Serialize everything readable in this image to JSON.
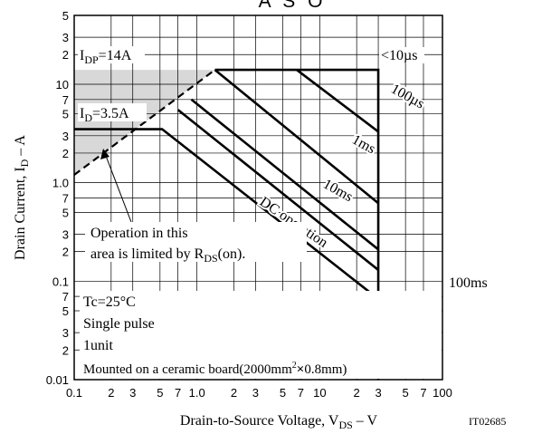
{
  "chart_data": {
    "type": "line",
    "title": "A S O",
    "xlabel_prefix": "Drain-to-Source Voltage, V",
    "xlabel_sub": "DS",
    "xlabel_suffix": " – V",
    "ylabel_prefix": "Drain Current, I",
    "ylabel_sub": "D",
    "ylabel_suffix": " – A",
    "xscale": "log",
    "yscale": "log",
    "xlim": [
      0.1,
      100
    ],
    "ylim": [
      0.01,
      50
    ],
    "grid": true,
    "x_tick_labels": [
      {
        "v": 0.1,
        "t": "0.1"
      },
      {
        "v": 0.2,
        "t": "2"
      },
      {
        "v": 0.3,
        "t": "3"
      },
      {
        "v": 0.5,
        "t": "5"
      },
      {
        "v": 0.7,
        "t": "7"
      },
      {
        "v": 1,
        "t": "1.0"
      },
      {
        "v": 2,
        "t": "2"
      },
      {
        "v": 3,
        "t": "3"
      },
      {
        "v": 5,
        "t": "5"
      },
      {
        "v": 7,
        "t": "7"
      },
      {
        "v": 10,
        "t": "10"
      },
      {
        "v": 20,
        "t": "2"
      },
      {
        "v": 30,
        "t": "3"
      },
      {
        "v": 50,
        "t": "5"
      },
      {
        "v": 70,
        "t": "7"
      },
      {
        "v": 100,
        "t": "100"
      }
    ],
    "y_tick_labels": [
      {
        "v": 0.01,
        "t": "0.01"
      },
      {
        "v": 0.02,
        "t": "2"
      },
      {
        "v": 0.03,
        "t": "3"
      },
      {
        "v": 0.05,
        "t": "5"
      },
      {
        "v": 0.07,
        "t": "7"
      },
      {
        "v": 0.1,
        "t": "0.1"
      },
      {
        "v": 0.2,
        "t": "2"
      },
      {
        "v": 0.3,
        "t": "3"
      },
      {
        "v": 0.5,
        "t": "5"
      },
      {
        "v": 0.7,
        "t": "7"
      },
      {
        "v": 1,
        "t": "1.0"
      },
      {
        "v": 2,
        "t": "2"
      },
      {
        "v": 3,
        "t": "3"
      },
      {
        "v": 5,
        "t": "5"
      },
      {
        "v": 7,
        "t": "7"
      },
      {
        "v": 10,
        "t": "10"
      },
      {
        "v": 20,
        "t": "2"
      },
      {
        "v": 30,
        "t": "3"
      },
      {
        "v": 50,
        "t": "5"
      }
    ],
    "series": [
      {
        "name": "<10µs",
        "points": [
          [
            1.4,
            14
          ],
          [
            30,
            14
          ],
          [
            30,
            0.01
          ]
        ]
      },
      {
        "name": "100µs",
        "points": [
          [
            6.5,
            14
          ],
          [
            30,
            3.3
          ]
        ]
      },
      {
        "name": "1ms",
        "points": [
          [
            1.4,
            14
          ],
          [
            30,
            0.62
          ]
        ]
      },
      {
        "name": "10ms",
        "points": [
          [
            0.9,
            7
          ],
          [
            30,
            0.21
          ]
        ]
      },
      {
        "name": "DC operation",
        "points": [
          [
            0.1,
            3.5
          ],
          [
            0.52,
            3.5
          ],
          [
            30,
            0.066
          ]
        ]
      },
      {
        "name": "100ms",
        "points": [
          [
            0.7,
            5.5
          ],
          [
            30,
            0.13
          ]
        ]
      }
    ],
    "rds_limit_line": [
      [
        0.1,
        1.2
      ],
      [
        1.4,
        14
      ]
    ],
    "limited_region": [
      [
        0.1,
        14
      ],
      [
        1.4,
        14
      ],
      [
        0.1,
        1.2
      ]
    ],
    "annotations": {
      "idp": {
        "prefix": "I",
        "sub": "DP",
        "suffix": "=14A"
      },
      "id": {
        "prefix": "I",
        "sub": "D",
        "suffix": "=3.5A"
      },
      "us10": "<10µs",
      "us100": "100µs",
      "ms1": "1ms",
      "ms10": "10ms",
      "dc": "DC operation",
      "ms100": "100ms",
      "op_line1": "Operation in this",
      "op_line2_prefix": "area is limited by R",
      "op_line2_sub": "DS",
      "op_line2_suffix": "(on).",
      "tc": "Tc=25°C",
      "pulse": "Single pulse",
      "unit": "1unit",
      "mount_prefix": "Mounted on a ceramic board(2000mm",
      "mount_sup": "2",
      "mount_times": "×",
      "mount_suffix": "0.8mm)",
      "code": "IT02685"
    },
    "colors": {
      "line": "#000000",
      "grid": "#000000",
      "shade": "#d8d8d8",
      "background": "#ffffff"
    }
  }
}
